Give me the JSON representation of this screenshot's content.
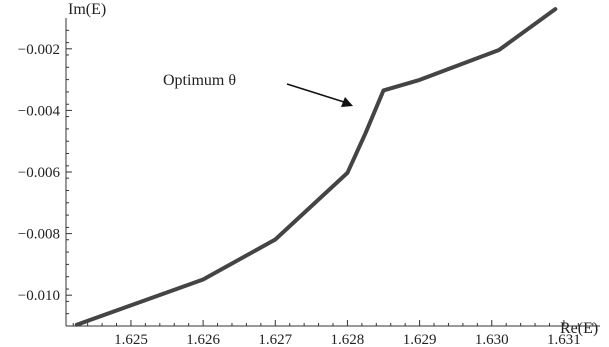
{
  "chart_data": {
    "type": "line",
    "title": "",
    "xlabel": "Re(E)",
    "ylabel": "Im(E)",
    "xlim": [
      1.6241,
      1.6315
    ],
    "ylim": [
      -0.011,
      -0.001
    ],
    "grid": false,
    "x_ticks": [
      1.625,
      1.626,
      1.627,
      1.628,
      1.629,
      1.63,
      1.631
    ],
    "x_tick_labels": [
      "1.625",
      "1.626",
      "1.627",
      "1.628",
      "1.629",
      "1.630",
      "1.631"
    ],
    "y_ticks": [
      -0.01,
      -0.008,
      -0.006,
      -0.004,
      -0.002
    ],
    "y_tick_labels": [
      "−0.010",
      "−0.008",
      "−0.006",
      "−0.004",
      "−0.002"
    ],
    "series": [
      {
        "x": [
          1.62425,
          1.626,
          1.627,
          1.628,
          1.62825,
          1.6285,
          1.629,
          1.6301,
          1.63088
        ],
        "y": [
          -0.01096,
          -0.00949,
          -0.00819,
          -0.00603,
          -0.00474,
          -0.00335,
          -0.00301,
          -0.00204,
          -0.00071
        ],
        "color": "#444444"
      }
    ],
    "annotation": {
      "text": "Optimum θ",
      "target_x": 1.6285,
      "target_y": -0.00335
    }
  }
}
